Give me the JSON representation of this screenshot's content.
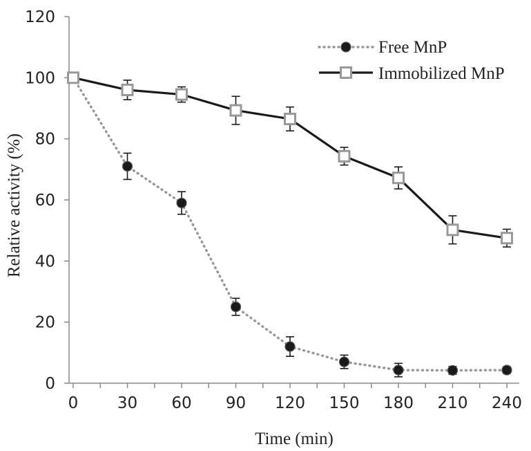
{
  "chart_data": {
    "type": "line",
    "title": "",
    "xlabel": "Time (min)",
    "ylabel": "Relative activity (%)",
    "x": [
      0,
      30,
      60,
      90,
      120,
      150,
      180,
      210,
      240
    ],
    "xticks": [
      "0",
      "30",
      "60",
      "90",
      "120",
      "150",
      "180",
      "210",
      "240"
    ],
    "yticks": [
      "0",
      "20",
      "40",
      "60",
      "80",
      "100",
      "120"
    ],
    "xlim": [
      0,
      240
    ],
    "ylim": [
      0,
      120
    ],
    "grid": false,
    "legend_position": "top-right",
    "series": [
      {
        "name": "Free MnP",
        "style": "dotted line, filled circle markers",
        "color": "#999999",
        "marker_color": "#1a1a1a",
        "values": [
          100,
          71,
          59,
          25,
          12,
          7,
          4.3,
          4.2,
          4.3
        ],
        "errors": [
          0,
          4.3,
          3.7,
          2.8,
          3.2,
          2.2,
          2.2,
          1.3,
          1.1
        ]
      },
      {
        "name": "Immobilized MnP",
        "style": "solid line, open square markers",
        "color": "#1a1a1a",
        "marker_color": "#999999",
        "values": [
          100,
          96,
          94.5,
          89.3,
          86.5,
          74.3,
          67.2,
          50.2,
          47.5
        ],
        "errors": [
          0,
          3.2,
          2.5,
          4.6,
          3.9,
          2.9,
          3.6,
          4.6,
          2.9
        ]
      }
    ]
  }
}
